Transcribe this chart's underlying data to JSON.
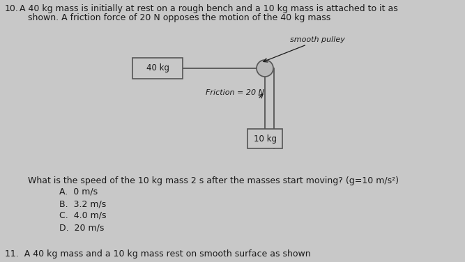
{
  "bg_color": "#c8c8c8",
  "title_num": "10.",
  "title_line1": " A 40 kg mass is initially at rest on a rough bench and a 10 kg mass is attached to it as",
  "title_line2": "    shown. A friction force of 20 N opposes the motion of the 40 kg mass",
  "question_text": "What is the speed of the 10 kg mass 2 s after the masses start moving? (g=10 m/s²)",
  "opt_A": "A.  0 m/s",
  "opt_B": "B.  3.2 m/s",
  "opt_C": "C.  4.0 m/s",
  "opt_D": "D.  20 m/s",
  "next_question": "11.  A 40 kg mass and a 10 kg mass rest on smooth surface as shown",
  "mass40_label": "40 kg",
  "mass10_label": "10 kg",
  "friction_label": "Friction = 20 N",
  "pulley_label": "smooth pulley",
  "font_color": "#1a1a1a",
  "box_edge_color": "#555555",
  "box_face_color": "#c8c8c8",
  "rope_color": "#555555",
  "pulley_face_color": "#b8b8b8"
}
